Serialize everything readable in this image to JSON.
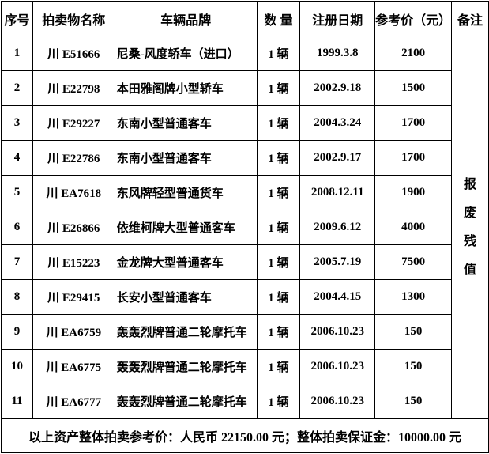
{
  "headers": [
    "序号",
    "拍卖物名称",
    "车辆品牌",
    "数 量",
    "注册日期",
    "参考价（元）",
    "备注"
  ],
  "rows": [
    {
      "no": "1",
      "name": "川 E51666",
      "brand": "尼桑-风度轿车（进口）",
      "qty": "1 辆",
      "date": "1999.3.8",
      "price": "2100"
    },
    {
      "no": "2",
      "name": "川 E22798",
      "brand": "本田雅阁牌小型轿车",
      "qty": "1 辆",
      "date": "2002.9.18",
      "price": "1500"
    },
    {
      "no": "3",
      "name": "川 E29227",
      "brand": "东南小型普通客车",
      "qty": "1 辆",
      "date": "2004.3.24",
      "price": "1700"
    },
    {
      "no": "4",
      "name": "川 E22786",
      "brand": "东南小型普通客车",
      "qty": "1 辆",
      "date": "2002.9.17",
      "price": "1700"
    },
    {
      "no": "5",
      "name": "川 EA7618",
      "brand": "东风牌轻型普通货车",
      "qty": "1 辆",
      "date": "2008.12.11",
      "price": "1900"
    },
    {
      "no": "6",
      "name": "川 E26866",
      "brand": "依维柯牌大型普通客车",
      "qty": "1 辆",
      "date": "2009.6.12",
      "price": "4000"
    },
    {
      "no": "7",
      "name": "川 E15223",
      "brand": "金龙牌大型普通客车",
      "qty": "1 辆",
      "date": "2005.7.19",
      "price": "7500"
    },
    {
      "no": "8",
      "name": "川 E29415",
      "brand": "长安小型普通客车",
      "qty": "1 辆",
      "date": "2004.4.15",
      "price": "1300"
    },
    {
      "no": "9",
      "name": "川 EA6759",
      "brand": "轰轰烈牌普通二轮摩托车",
      "qty": "1 辆",
      "date": "2006.10.23",
      "price": "150"
    },
    {
      "no": "10",
      "name": "川 EA6775",
      "brand": "轰轰烈牌普通二轮摩托车",
      "qty": "1 辆",
      "date": "2006.10.23",
      "price": "150"
    },
    {
      "no": "11",
      "name": "川 EA6777",
      "brand": "轰轰烈牌普通二轮摩托车",
      "qty": "1 辆",
      "date": "2006.10.23",
      "price": "150"
    }
  ],
  "note": [
    "报",
    "废",
    "残",
    "值"
  ],
  "footer": "以上资产整体拍卖参考价：人民币 22150.00 元；整体拍卖保证金：10000.00 元"
}
